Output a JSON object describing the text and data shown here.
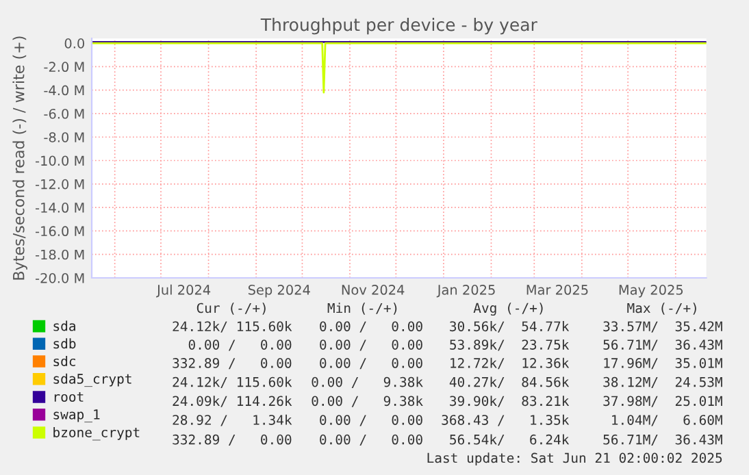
{
  "chart_data": {
    "type": "line",
    "title": "Throughput per device - by year",
    "ylabel": "Bytes/second read (-) / write (+)",
    "xlim": [
      "2024-05-17",
      "2025-06-21"
    ],
    "xticks": [
      {
        "value": "2024-07-16",
        "label": "Jul 2024"
      },
      {
        "value": "2024-09-16",
        "label": "Sep 2024"
      },
      {
        "value": "2024-11-16",
        "label": "Nov 2024"
      },
      {
        "value": "2025-01-16",
        "label": "Jan 2025"
      },
      {
        "value": "2025-03-16",
        "label": "Mar 2025"
      },
      {
        "value": "2025-05-16",
        "label": "May 2025"
      }
    ],
    "ylim": [
      -20000000,
      400000
    ],
    "yticks": [
      {
        "value": 0,
        "label": "0.0"
      },
      {
        "value": -2000000,
        "label": "-2.0 M"
      },
      {
        "value": -4000000,
        "label": "-4.0 M"
      },
      {
        "value": -6000000,
        "label": "-6.0 M"
      },
      {
        "value": -8000000,
        "label": "-8.0 M"
      },
      {
        "value": -10000000,
        "label": "-10.0 M"
      },
      {
        "value": -12000000,
        "label": "-12.0 M"
      },
      {
        "value": -14000000,
        "label": "-14.0 M"
      },
      {
        "value": -16000000,
        "label": "-16.0 M"
      },
      {
        "value": -18000000,
        "label": "-18.0 M"
      },
      {
        "value": -20000000,
        "label": "-20.0 M"
      }
    ],
    "grid": true,
    "legend": "bottom",
    "x": [
      "2024-05-17",
      "2024-06-15",
      "2024-07-15",
      "2024-08-15",
      "2024-09-15",
      "2024-10-14",
      "2024-10-15",
      "2024-10-16",
      "2024-11-15",
      "2024-12-15",
      "2025-01-15",
      "2025-02-15",
      "2025-03-15",
      "2025-04-15",
      "2025-05-15",
      "2025-06-21"
    ],
    "series": [
      {
        "name": "sda",
        "color": "#00cc00",
        "values": [
          null,
          null,
          null,
          null,
          null,
          null,
          null,
          null,
          null,
          null,
          null,
          null,
          null,
          null,
          null,
          null
        ]
      },
      {
        "name": "sdb",
        "color": "#0066b3",
        "values": [
          null,
          null,
          null,
          null,
          null,
          null,
          null,
          null,
          null,
          null,
          null,
          null,
          null,
          null,
          null,
          null
        ]
      },
      {
        "name": "sdc",
        "color": "#ff8000",
        "values": [
          null,
          null,
          null,
          null,
          null,
          null,
          null,
          null,
          null,
          null,
          null,
          null,
          null,
          null,
          null,
          null
        ]
      },
      {
        "name": "sda5_crypt",
        "color": "#ffcc00",
        "values": [
          null,
          null,
          null,
          null,
          null,
          null,
          null,
          null,
          null,
          null,
          null,
          null,
          null,
          null,
          null,
          null
        ]
      },
      {
        "name": "root",
        "color": "#330099",
        "values": [
          100000,
          100000,
          100000,
          100000,
          100000,
          100000,
          100000,
          100000,
          100000,
          100000,
          100000,
          100000,
          100000,
          100000,
          100000,
          100000
        ]
      },
      {
        "name": "swap_1",
        "color": "#990099",
        "values": [
          null,
          null,
          null,
          null,
          null,
          null,
          null,
          null,
          null,
          null,
          null,
          null,
          null,
          null,
          null,
          null
        ]
      },
      {
        "name": "bzone_crypt",
        "color": "#ccff00",
        "values": [
          0,
          0,
          0,
          0,
          0,
          0,
          -4200000,
          0,
          0,
          0,
          0,
          0,
          0,
          0,
          0,
          0
        ]
      }
    ],
    "annotations": [
      "Cur (-/+)",
      "Min (-/+)",
      "Avg (-/+)",
      "Max (-/+)",
      "24.12k/ 115.60k",
      "0.00 /   0.00",
      "30.56k/  54.77k",
      "33.57M/  35.42M",
      "0.00 /   0.00",
      "0.00 /   0.00",
      "53.89k/  23.75k",
      "56.71M/  36.43M",
      "332.89 /   0.00",
      "0.00 /   0.00",
      "12.72k/  12.36k",
      "17.96M/  35.01M",
      "24.12k/ 115.60k",
      "0.00 /   9.38k",
      "40.27k/  84.56k",
      "38.12M/  24.53M",
      "24.09k/ 114.26k",
      "0.00 /   9.38k",
      "39.90k/  83.21k",
      "37.98M/  25.01M",
      "28.92 /   1.34k",
      "0.00 /   0.00",
      "368.43 /   1.35k",
      "1.04M/   6.60M",
      "332.89 /   0.00",
      "0.00 /   0.00",
      "56.54k/   6.24k",
      "56.71M/  36.43M",
      "Last update: Sat Jun 21 02:00:02 2025"
    ]
  }
}
